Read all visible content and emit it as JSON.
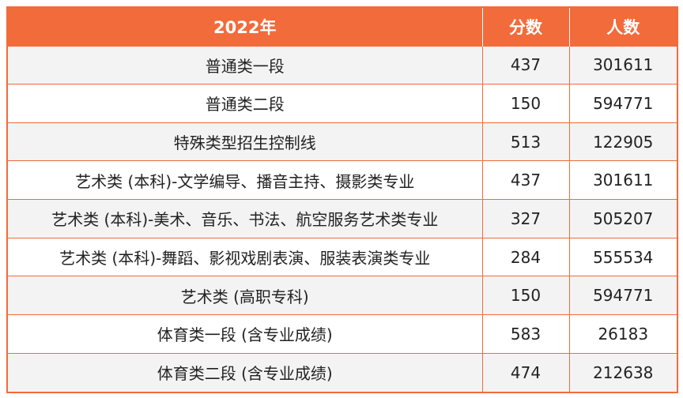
{
  "table": {
    "headers": [
      "2022年",
      "分数",
      "人数"
    ],
    "rows": [
      {
        "category": "普通类一段",
        "score": "437",
        "count": "301611"
      },
      {
        "category": "普通类二段",
        "score": "150",
        "count": "594771"
      },
      {
        "category": "特殊类型招生控制线",
        "score": "513",
        "count": "122905"
      },
      {
        "category": "艺术类 (本科)-文学编导、播音主持、摄影类专业",
        "score": "437",
        "count": "301611"
      },
      {
        "category": "艺术类 (本科)-美术、音乐、书法、航空服务艺术类专业",
        "score": "327",
        "count": "505207"
      },
      {
        "category": "艺术类 (本科)-舞蹈、影视戏剧表演、服装表演类专业",
        "score": "284",
        "count": "555534"
      },
      {
        "category": "艺术类 (高职专科)",
        "score": "150",
        "count": "594771"
      },
      {
        "category": "体育类一段 (含专业成绩)",
        "score": "583",
        "count": "26183"
      },
      {
        "category": "体育类二段 (含专业成绩)",
        "score": "474",
        "count": "212638"
      }
    ]
  },
  "colors": {
    "header_bg": "#f26b3a",
    "header_text": "#ffffff",
    "border": "#f26b3a",
    "row_alt": "#f3f3f3"
  }
}
